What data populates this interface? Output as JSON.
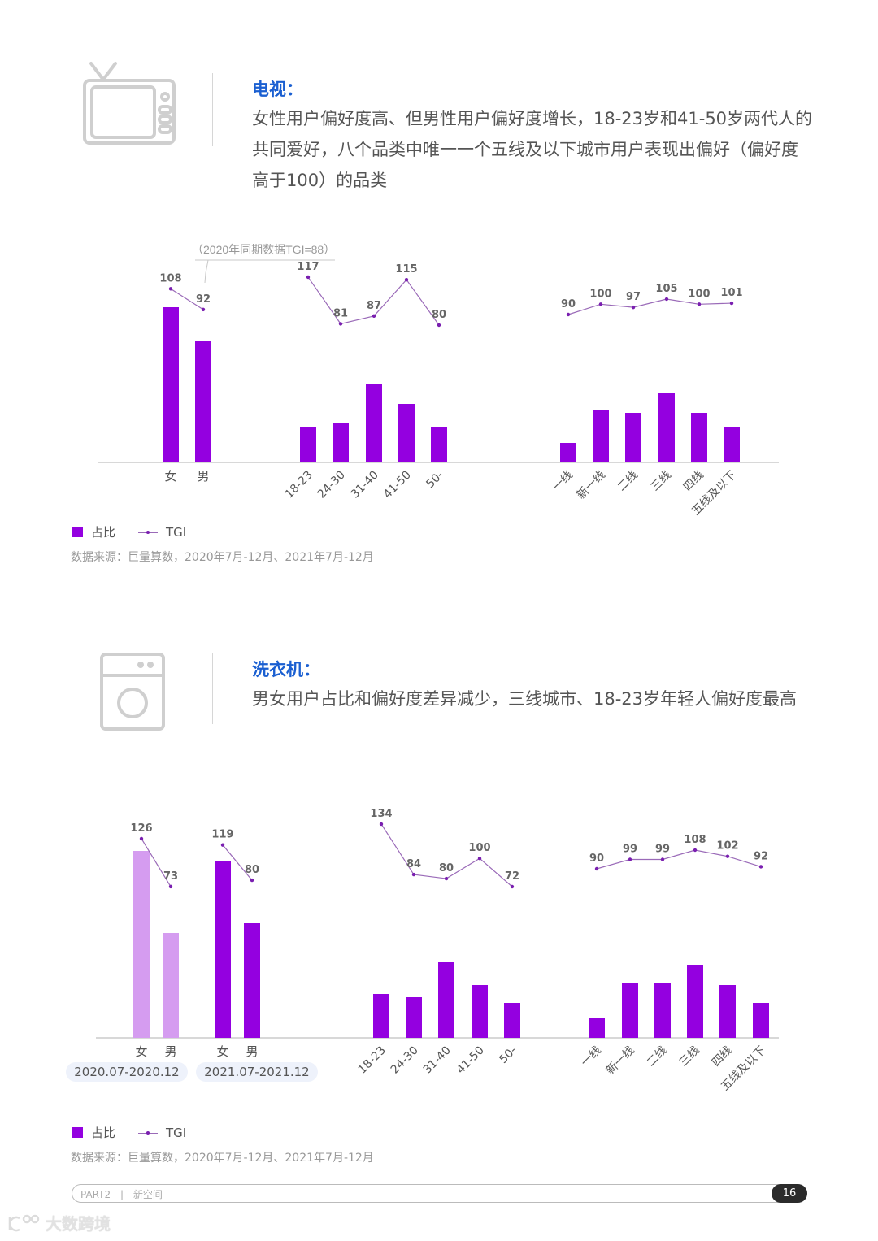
{
  "sections": [
    {
      "icon": "tv-icon",
      "title": "电视：",
      "description": "女性用户偏好度高、但男性用户偏好度增长，18-23岁和41-50岁两代人的共同爱好，八个品类中唯一一个五线及以下城市用户表现出偏好（偏好度高于100）的品类",
      "annotation": "（2020年同期数据TGI=88）",
      "legend": {
        "bar_label": "占比",
        "line_label": "TGI"
      },
      "source": "数据来源：巨量算数，2020年7月-12月、2021年7月-12月"
    },
    {
      "icon": "washing-machine-icon",
      "title": "洗衣机：",
      "description": "男女用户占比和偏好度差异减少，三线城市、18-23岁年轻人偏好度最高",
      "period_labels": [
        "2020.07-2020.12",
        "2021.07-2021.12"
      ],
      "legend": {
        "bar_label": "占比",
        "line_label": "TGI"
      },
      "source": "数据来源：巨量算数，2020年7月-12月、2021年7月-12月"
    }
  ],
  "footer": {
    "part": "PART2",
    "separator": "|",
    "section": "新空间",
    "page": "16"
  },
  "watermark": "大数跨境",
  "colors": {
    "bar": "#9400e0",
    "bar_2020": "#d59cf0",
    "line": "#9a6ab8",
    "point": "#7a1fb0",
    "title": "#1a5fd1",
    "axis": "#cccccc"
  },
  "chart_data": [
    {
      "type": "bar",
      "title": "电视",
      "groups": [
        {
          "name": "gender",
          "categories": [
            "女",
            "男"
          ],
          "share_relative": [
            191,
            150
          ],
          "tgi": [
            108,
            92
          ]
        },
        {
          "name": "age",
          "categories": [
            "18-23",
            "24-30",
            "31-40",
            "41-50",
            "50-"
          ],
          "share_relative": [
            44,
            48,
            96,
            72,
            44
          ],
          "tgi": [
            117,
            81,
            87,
            115,
            80
          ]
        },
        {
          "name": "city_tier",
          "categories": [
            "一线",
            "新一线",
            "二线",
            "三线",
            "四线",
            "五线及以下"
          ],
          "share_relative": [
            24,
            65,
            61,
            85,
            61,
            44
          ],
          "tgi": [
            90,
            100,
            97,
            105,
            100,
            101
          ]
        }
      ],
      "annotation": "（2020年同期数据TGI=88）",
      "legend": [
        "占比",
        "TGI"
      ],
      "series": [
        {
          "name": "占比",
          "kind": "bar"
        },
        {
          "name": "TGI",
          "kind": "line"
        }
      ],
      "grid": false
    },
    {
      "type": "bar",
      "title": "洗衣机",
      "groups": [
        {
          "name": "gender_2020",
          "period": "2020.07-2020.12",
          "categories": [
            "女",
            "男"
          ],
          "share_relative": [
            230,
            129
          ],
          "tgi": [
            126,
            73
          ]
        },
        {
          "name": "gender_2021",
          "period": "2021.07-2021.12",
          "categories": [
            "女",
            "男"
          ],
          "share_relative": [
            218,
            141
          ],
          "tgi": [
            119,
            80
          ]
        },
        {
          "name": "age",
          "categories": [
            "18-23",
            "24-30",
            "31-40",
            "41-50",
            "50-"
          ],
          "share_relative": [
            54,
            50,
            93,
            65,
            43
          ],
          "tgi": [
            134,
            84,
            80,
            100,
            72
          ]
        },
        {
          "name": "city_tier",
          "categories": [
            "一线",
            "新一线",
            "二线",
            "三线",
            "四线",
            "五线及以下"
          ],
          "share_relative": [
            25,
            68,
            68,
            90,
            65,
            43
          ],
          "tgi": [
            90,
            99,
            99,
            108,
            102,
            92
          ]
        }
      ],
      "legend": [
        "占比",
        "TGI"
      ],
      "series": [
        {
          "name": "占比",
          "kind": "bar"
        },
        {
          "name": "TGI",
          "kind": "line"
        }
      ],
      "grid": false
    }
  ]
}
